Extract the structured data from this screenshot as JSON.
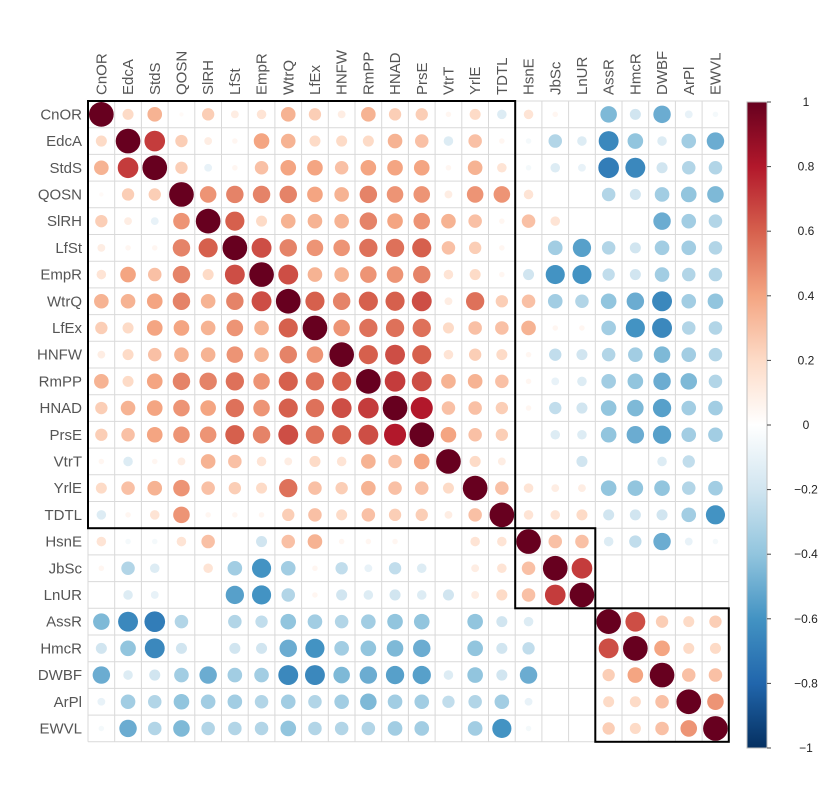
{
  "chart_data": {
    "type": "heatmap",
    "title": "",
    "variables": [
      "CnOR",
      "EdcA",
      "StdS",
      "QOSN",
      "SlRH",
      "LfSt",
      "EmpR",
      "WtrQ",
      "LfEx",
      "HNFW",
      "RmPP",
      "HNAD",
      "PrsE",
      "VtrT",
      "YrlE",
      "TDTL",
      "HsnE",
      "JbSc",
      "LnUR",
      "AssR",
      "HmcR",
      "DWBF",
      "ArPl",
      "EWVL"
    ],
    "matrix": [
      [
        1,
        0.2,
        0.35,
        0.03,
        0.25,
        0.1,
        0.15,
        0.35,
        0.25,
        0.1,
        0.35,
        0.25,
        0.25,
        0.05,
        0.2,
        -0.15,
        0.15,
        0.05,
        0,
        -0.45,
        -0.2,
        -0.5,
        -0.1,
        -0.05
      ],
      [
        0.2,
        1,
        0.7,
        0.25,
        0.1,
        0.05,
        0.4,
        0.35,
        0.2,
        0.2,
        0.2,
        0.35,
        0.3,
        -0.15,
        0.3,
        0.05,
        -0.05,
        -0.3,
        -0.15,
        -0.65,
        -0.4,
        -0.15,
        -0.35,
        -0.5
      ],
      [
        0.35,
        0.7,
        1,
        0.25,
        -0.1,
        0.05,
        0.3,
        0.4,
        0.4,
        0.3,
        0.4,
        0.4,
        0.4,
        0.05,
        0.35,
        0.15,
        -0.05,
        -0.15,
        -0.1,
        -0.7,
        -0.65,
        -0.2,
        -0.3,
        -0.3
      ],
      [
        0.03,
        0.25,
        0.25,
        1,
        0.45,
        0.5,
        0.5,
        0.5,
        0.4,
        0.35,
        0.5,
        0.45,
        0.45,
        0.1,
        0.45,
        0.45,
        0.15,
        0,
        0,
        -0.3,
        -0.2,
        -0.35,
        -0.4,
        -0.45
      ],
      [
        0.25,
        0.1,
        -0.1,
        0.45,
        1,
        0.6,
        0.2,
        0.35,
        0.35,
        0.35,
        0.5,
        0.4,
        0.45,
        0.35,
        0.3,
        0.05,
        0.3,
        0.15,
        0,
        0,
        0,
        -0.5,
        -0.35,
        -0.3
      ],
      [
        0.1,
        0.05,
        0.05,
        0.5,
        0.6,
        1,
        0.65,
        0.5,
        0.45,
        0.45,
        0.55,
        0.55,
        0.6,
        0.3,
        0.25,
        0.05,
        0,
        -0.35,
        -0.55,
        -0.3,
        -0.2,
        -0.35,
        -0.35,
        -0.3
      ],
      [
        0.15,
        0.4,
        0.3,
        0.5,
        0.2,
        0.65,
        1,
        0.65,
        0.35,
        0.35,
        0.45,
        0.45,
        0.5,
        0.15,
        0.2,
        0.05,
        -0.2,
        -0.6,
        -0.6,
        -0.25,
        -0.2,
        -0.35,
        -0.3,
        -0.3
      ],
      [
        0.35,
        0.35,
        0.4,
        0.5,
        0.35,
        0.5,
        0.65,
        1,
        0.6,
        0.5,
        0.6,
        0.6,
        0.65,
        0.1,
        0.55,
        0.25,
        0.3,
        -0.35,
        -0.3,
        -0.4,
        -0.5,
        -0.65,
        -0.35,
        -0.4
      ],
      [
        0.25,
        0.2,
        0.4,
        0.4,
        0.35,
        0.45,
        0.35,
        0.6,
        1,
        0.45,
        0.55,
        0.55,
        0.55,
        0.2,
        0.3,
        0.3,
        0.35,
        0.05,
        0.05,
        -0.35,
        -0.6,
        -0.65,
        -0.3,
        -0.3
      ],
      [
        0.1,
        0.2,
        0.3,
        0.35,
        0.35,
        0.45,
        0.35,
        0.5,
        0.45,
        1,
        0.6,
        0.65,
        0.6,
        0.15,
        0.25,
        0.2,
        0.05,
        -0.25,
        -0.2,
        -0.3,
        -0.35,
        -0.45,
        -0.35,
        -0.3
      ],
      [
        0.35,
        0.2,
        0.4,
        0.5,
        0.5,
        0.55,
        0.45,
        0.6,
        0.55,
        0.6,
        1,
        0.7,
        0.65,
        0.35,
        0.35,
        0.3,
        0.05,
        -0.1,
        -0.15,
        -0.35,
        -0.4,
        -0.5,
        -0.45,
        -0.3
      ],
      [
        0.25,
        0.35,
        0.4,
        0.45,
        0.4,
        0.55,
        0.45,
        0.6,
        0.55,
        0.65,
        0.7,
        1,
        0.8,
        0.3,
        0.3,
        0.25,
        0.05,
        -0.25,
        -0.2,
        -0.4,
        -0.45,
        -0.55,
        -0.35,
        -0.35
      ],
      [
        0.25,
        0.3,
        0.4,
        0.45,
        0.45,
        0.6,
        0.5,
        0.65,
        0.55,
        0.6,
        0.65,
        0.8,
        1,
        0.4,
        0.3,
        0.25,
        0,
        -0.15,
        -0.15,
        -0.4,
        -0.5,
        -0.55,
        -0.35,
        -0.35
      ],
      [
        0.05,
        -0.15,
        0.05,
        0.1,
        0.35,
        0.3,
        0.15,
        0.1,
        0.2,
        0.15,
        0.35,
        0.3,
        0.4,
        1,
        0.2,
        0.1,
        0,
        0,
        -0.2,
        0,
        0,
        -0.15,
        -0.25,
        0
      ],
      [
        0.2,
        0.3,
        0.35,
        0.45,
        0.3,
        0.25,
        0.2,
        0.55,
        0.3,
        0.25,
        0.35,
        0.3,
        0.3,
        0.2,
        1,
        0.3,
        0.15,
        0.1,
        0.1,
        -0.4,
        -0.4,
        -0.4,
        -0.3,
        -0.35
      ],
      [
        -0.15,
        0.05,
        0.15,
        0.45,
        0.05,
        0.05,
        0.05,
        0.25,
        0.3,
        0.2,
        0.3,
        0.25,
        0.25,
        0.1,
        0.3,
        1,
        0.15,
        0.15,
        0.2,
        -0.2,
        -0.2,
        -0.2,
        -0.35,
        -0.6
      ],
      [
        0.15,
        -0.05,
        -0.05,
        0.15,
        0.3,
        0,
        -0.2,
        0.3,
        0.35,
        0.05,
        0.05,
        0.05,
        0,
        0,
        0.15,
        0.15,
        1,
        0.3,
        0.3,
        -0.15,
        -0.25,
        -0.5,
        -0.1,
        -0.05
      ],
      [
        0.05,
        -0.3,
        -0.15,
        0,
        0.15,
        -0.35,
        -0.6,
        -0.35,
        0.05,
        -0.25,
        -0.1,
        -0.25,
        -0.15,
        0,
        0.1,
        0.15,
        0.3,
        1,
        0.7,
        0,
        0,
        0,
        0,
        0
      ],
      [
        0,
        -0.15,
        -0.1,
        0,
        0,
        -0.55,
        -0.6,
        -0.3,
        0.05,
        -0.2,
        -0.15,
        -0.2,
        -0.15,
        -0.2,
        0.1,
        0.2,
        0.3,
        0.7,
        1,
        0,
        0,
        0,
        0,
        0
      ],
      [
        -0.45,
        -0.65,
        -0.7,
        -0.3,
        0,
        -0.3,
        -0.25,
        -0.4,
        -0.35,
        -0.3,
        -0.35,
        -0.4,
        -0.4,
        0,
        -0.4,
        -0.2,
        -0.15,
        0,
        0,
        1,
        0.65,
        0.25,
        0.2,
        0.25
      ],
      [
        -0.2,
        -0.4,
        -0.65,
        -0.2,
        0,
        -0.2,
        -0.2,
        -0.5,
        -0.6,
        -0.35,
        -0.4,
        -0.45,
        -0.5,
        0,
        -0.4,
        -0.2,
        -0.25,
        0,
        0,
        0.65,
        1,
        0.4,
        0.2,
        0.2
      ],
      [
        -0.5,
        -0.15,
        -0.2,
        -0.35,
        -0.5,
        -0.35,
        -0.35,
        -0.65,
        -0.65,
        -0.45,
        -0.5,
        -0.55,
        -0.55,
        -0.15,
        -0.4,
        -0.2,
        -0.5,
        0,
        0,
        0.25,
        0.4,
        1,
        0.3,
        0.3
      ],
      [
        -0.1,
        -0.35,
        -0.3,
        -0.4,
        -0.35,
        -0.35,
        -0.3,
        -0.35,
        -0.3,
        -0.35,
        -0.45,
        -0.35,
        -0.35,
        -0.25,
        -0.3,
        -0.35,
        -0.1,
        0,
        0,
        0.2,
        0.2,
        0.3,
        1,
        0.45
      ],
      [
        -0.05,
        -0.5,
        -0.3,
        -0.45,
        -0.3,
        -0.3,
        -0.3,
        -0.4,
        -0.3,
        -0.3,
        -0.3,
        -0.35,
        -0.35,
        0,
        -0.35,
        -0.6,
        -0.05,
        0,
        0,
        0.25,
        0.2,
        0.3,
        0.45,
        1
      ]
    ],
    "clusters": [
      [
        0,
        15
      ],
      [
        16,
        18
      ],
      [
        19,
        23
      ]
    ],
    "colorbar": {
      "min": -1,
      "max": 1,
      "ticks": [
        "1",
        "0.8",
        "0.6",
        "0.4",
        "0.2",
        "0",
        "−0.2",
        "−0.4",
        "−0.6",
        "−0.8",
        "−1"
      ],
      "tick_values": [
        1,
        0.8,
        0.6,
        0.4,
        0.2,
        0,
        -0.2,
        -0.4,
        -0.6,
        -0.8,
        -1
      ],
      "colors": [
        "#67001F",
        "#B2182B",
        "#D6604D",
        "#F4A582",
        "#FDDBC7",
        "#FFFFFF",
        "#D1E5F0",
        "#92C5DE",
        "#4393C3",
        "#2166AC",
        "#053061"
      ]
    },
    "xlabel": "",
    "ylabel": ""
  }
}
